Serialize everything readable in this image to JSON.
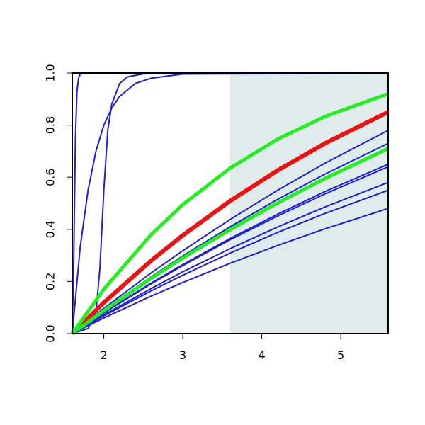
{
  "chart_data": {
    "type": "line",
    "xlim": [
      1.6,
      5.6
    ],
    "ylim": [
      0,
      1
    ],
    "xticks": [
      2,
      3,
      4,
      5
    ],
    "yticks": [
      {
        "value": 0,
        "label": "0.0"
      },
      0.2,
      0.4,
      0.6,
      0.8,
      {
        "value": 1,
        "label": "1.0"
      }
    ],
    "shaded_region": [
      3.6,
      5.6
    ],
    "shade_color": "#dfeceb",
    "series": [
      {
        "color": "#1f1fd6",
        "width": 2,
        "x": [
          1.6,
          1.62,
          1.64,
          1.66,
          1.68,
          1.7,
          1.75,
          5.6
        ],
        "values": [
          0,
          0.3,
          0.75,
          0.93,
          0.98,
          0.995,
          1,
          1
        ]
      },
      {
        "color": "#1f1fd6",
        "width": 2,
        "x": [
          1.6,
          1.7,
          1.8,
          1.9,
          2.0,
          2.1,
          2.2,
          2.4,
          2.6,
          3.0,
          5.6
        ],
        "values": [
          0,
          0.33,
          0.55,
          0.7,
          0.8,
          0.865,
          0.91,
          0.96,
          0.98,
          0.996,
          1
        ]
      },
      {
        "color": "#1f1fd6",
        "width": 2,
        "x": [
          1.6,
          1.8,
          1.9,
          1.95,
          2.0,
          2.05,
          2.1,
          2.2,
          2.3,
          2.5,
          3.0,
          5.6
        ],
        "values": [
          0,
          0.02,
          0.08,
          0.25,
          0.55,
          0.78,
          0.88,
          0.96,
          0.985,
          0.997,
          1,
          1
        ]
      },
      {
        "color": "#1f1fd6",
        "width": 2,
        "x": [
          1.6,
          2.0,
          2.6,
          3.0,
          3.6,
          4.2,
          4.8,
          5.6
        ],
        "values": [
          0,
          0.097,
          0.233,
          0.318,
          0.438,
          0.55,
          0.654,
          0.78
        ]
      },
      {
        "color": "#1f1fd6",
        "width": 2,
        "x": [
          1.6,
          2.0,
          2.6,
          3.0,
          3.6,
          4.2,
          4.8,
          5.6
        ],
        "values": [
          0,
          0.091,
          0.218,
          0.298,
          0.41,
          0.515,
          0.612,
          0.73
        ]
      },
      {
        "color": "#1f1fd6",
        "width": 2,
        "x": [
          1.6,
          2.0,
          2.6,
          3.0,
          3.6,
          4.2,
          4.8,
          5.6
        ],
        "values": [
          0,
          0.081,
          0.194,
          0.265,
          0.365,
          0.458,
          0.545,
          0.65
        ]
      },
      {
        "color": "#1f1fd6",
        "width": 2,
        "x": [
          1.6,
          2.0,
          2.6,
          3.0,
          3.6,
          4.2,
          4.8,
          5.6
        ],
        "values": [
          0,
          0.079,
          0.191,
          0.261,
          0.36,
          0.451,
          0.536,
          0.64
        ]
      },
      {
        "color": "#1f1fd6",
        "width": 2,
        "x": [
          1.6,
          2.0,
          2.6,
          3.0,
          3.6,
          4.2,
          4.8,
          5.6
        ],
        "values": [
          0,
          0.072,
          0.173,
          0.237,
          0.326,
          0.409,
          0.486,
          0.58
        ]
      },
      {
        "color": "#1f1fd6",
        "width": 2,
        "x": [
          1.6,
          2.0,
          2.6,
          3.0,
          3.6,
          4.2,
          4.8,
          5.6
        ],
        "values": [
          0,
          0.068,
          0.164,
          0.224,
          0.309,
          0.388,
          0.461,
          0.55
        ]
      },
      {
        "color": "#1f1fd6",
        "width": 2,
        "x": [
          1.6,
          2.0,
          2.6,
          3.0,
          3.6,
          4.2,
          4.8,
          5.6
        ],
        "values": [
          0,
          0.06,
          0.144,
          0.196,
          0.27,
          0.338,
          0.402,
          0.48
        ]
      },
      {
        "color": "#ee1111",
        "width": 6,
        "x": [
          1.6,
          2.0,
          2.6,
          3.0,
          3.6,
          4.2,
          4.8,
          5.6
        ],
        "values": [
          0,
          0.119,
          0.28,
          0.377,
          0.509,
          0.626,
          0.73,
          0.85
        ]
      },
      {
        "color": "#22ee22",
        "width": 5,
        "x": [
          1.6,
          2.0,
          2.6,
          3.0,
          3.6,
          4.2,
          4.8,
          5.6
        ],
        "values": [
          0,
          0.088,
          0.212,
          0.29,
          0.399,
          0.501,
          0.595,
          0.71
        ]
      },
      {
        "color": "#22ee22",
        "width": 5,
        "x": [
          1.6,
          2.0,
          2.6,
          3.0,
          3.6,
          4.2,
          4.8,
          5.6
        ],
        "values": [
          0,
          0.17,
          0.38,
          0.495,
          0.635,
          0.746,
          0.833,
          0.92
        ]
      }
    ]
  }
}
